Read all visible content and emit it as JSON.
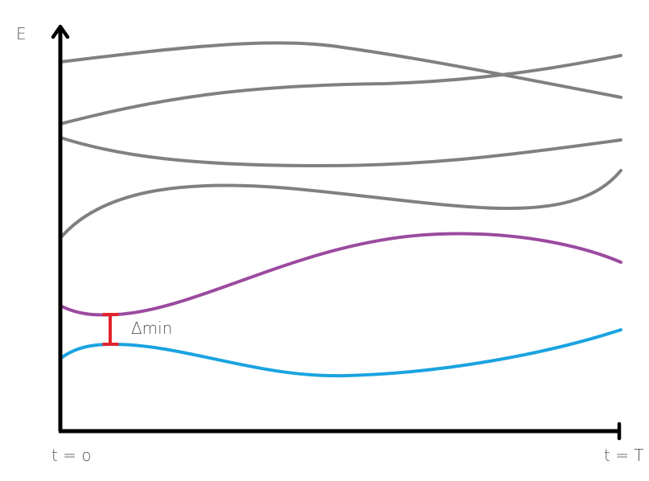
{
  "axis_labels": {
    "y": "E",
    "x_start": "t = o",
    "x_end": "t = T"
  },
  "gap_label": "Δmin",
  "colors": {
    "axis": "#000000",
    "excited_levels": "#808080",
    "first_excited": "#9b4a9f",
    "ground_state": "#1aa3e0",
    "gap_marker": "#e0242c"
  },
  "levels": [
    {
      "role": "ground state",
      "color_key": "ground_state"
    },
    {
      "role": "first excited state",
      "color_key": "first_excited"
    },
    {
      "role": "higher excited state",
      "color_key": "excited_levels"
    },
    {
      "role": "higher excited state",
      "color_key": "excited_levels"
    },
    {
      "role": "higher excited state",
      "color_key": "excited_levels"
    },
    {
      "role": "higher excited state",
      "color_key": "excited_levels"
    }
  ]
}
